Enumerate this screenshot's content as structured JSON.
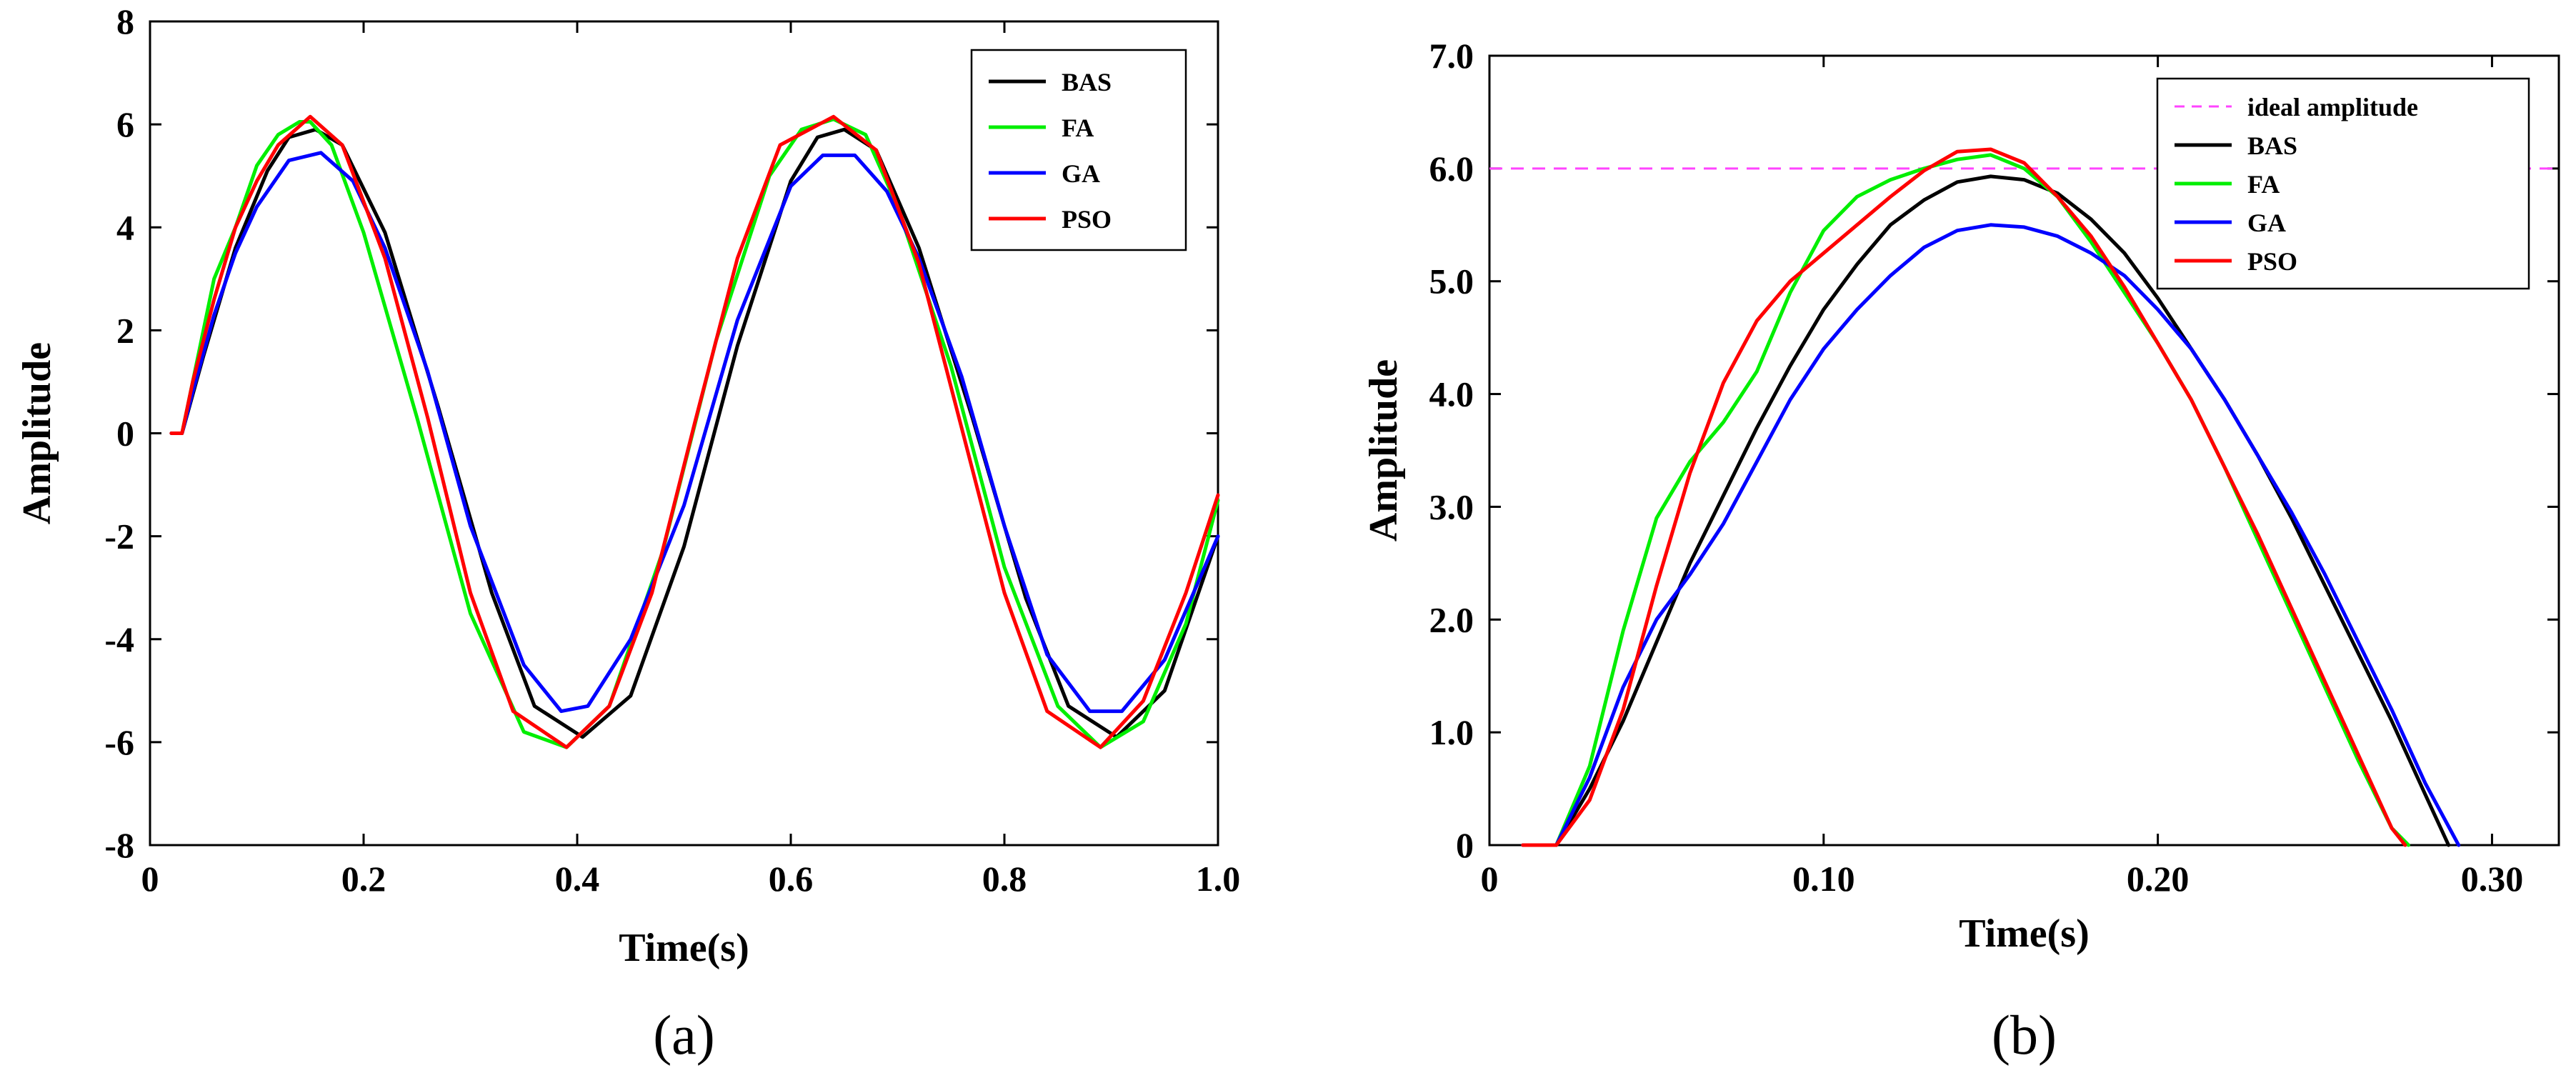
{
  "chart_data": [
    {
      "type": "line",
      "caption": "(a)",
      "xlabel": "Time(s)",
      "ylabel": "Amplitude",
      "xlim": [
        0,
        1.0
      ],
      "ylim": [
        -8,
        8
      ],
      "x_ticks": [
        0,
        0.2,
        0.4,
        0.6,
        0.8,
        1.0
      ],
      "x_tick_labels": [
        "0",
        "0.2",
        "0.4",
        "0.6",
        "0.8",
        "1.0"
      ],
      "y_ticks": [
        -8,
        -6,
        -4,
        -2,
        0,
        2,
        4,
        6,
        8
      ],
      "y_tick_labels": [
        "-8",
        "-6",
        "-4",
        "-2",
        "0",
        "2",
        "4",
        "6",
        "8"
      ],
      "legend_position": "top-right",
      "series": [
        {
          "name": "BAS",
          "color": "#000000",
          "x": [
            0.02,
            0.03,
            0.05,
            0.08,
            0.11,
            0.13,
            0.155,
            0.18,
            0.22,
            0.27,
            0.32,
            0.36,
            0.405,
            0.45,
            0.5,
            0.55,
            0.6,
            0.625,
            0.65,
            0.68,
            0.72,
            0.77,
            0.82,
            0.86,
            0.905,
            0.95,
            1.0
          ],
          "y": [
            0,
            0,
            1.5,
            3.6,
            5.1,
            5.75,
            5.9,
            5.6,
            3.9,
            0.5,
            -3.1,
            -5.3,
            -5.9,
            -5.1,
            -2.2,
            1.7,
            4.9,
            5.75,
            5.9,
            5.5,
            3.6,
            0.3,
            -3.2,
            -5.3,
            -5.9,
            -5.0,
            -2.0
          ]
        },
        {
          "name": "FA",
          "color": "#00ee00",
          "x": [
            0.02,
            0.03,
            0.04,
            0.06,
            0.08,
            0.1,
            0.12,
            0.14,
            0.15,
            0.17,
            0.2,
            0.25,
            0.3,
            0.35,
            0.39,
            0.43,
            0.48,
            0.53,
            0.58,
            0.61,
            0.64,
            0.67,
            0.7,
            0.75,
            0.8,
            0.85,
            0.89,
            0.93,
            0.97,
            1.0
          ],
          "y": [
            0,
            0,
            1.0,
            3.0,
            4.0,
            5.2,
            5.8,
            6.05,
            6.05,
            5.6,
            3.9,
            0.3,
            -3.5,
            -5.8,
            -6.1,
            -5.3,
            -2.3,
            1.8,
            5.0,
            5.9,
            6.1,
            5.8,
            4.4,
            1.3,
            -2.6,
            -5.3,
            -6.1,
            -5.6,
            -3.7,
            -1.3
          ]
        },
        {
          "name": "GA",
          "color": "#0000ff",
          "x": [
            0.02,
            0.03,
            0.04,
            0.06,
            0.08,
            0.1,
            0.13,
            0.16,
            0.19,
            0.22,
            0.26,
            0.3,
            0.35,
            0.385,
            0.41,
            0.45,
            0.5,
            0.55,
            0.6,
            0.63,
            0.66,
            0.69,
            0.72,
            0.76,
            0.8,
            0.84,
            0.88,
            0.91,
            0.95,
            1.0
          ],
          "y": [
            0,
            0,
            0.8,
            2.3,
            3.5,
            4.4,
            5.3,
            5.45,
            4.9,
            3.6,
            1.2,
            -1.8,
            -4.5,
            -5.4,
            -5.3,
            -4.0,
            -1.4,
            2.2,
            4.8,
            5.4,
            5.4,
            4.7,
            3.4,
            1.1,
            -1.8,
            -4.3,
            -5.4,
            -5.4,
            -4.4,
            -2.0
          ]
        },
        {
          "name": "PSO",
          "color": "#ff0000",
          "x": [
            0.02,
            0.03,
            0.04,
            0.06,
            0.08,
            0.1,
            0.12,
            0.15,
            0.18,
            0.22,
            0.26,
            0.3,
            0.34,
            0.39,
            0.43,
            0.47,
            0.51,
            0.55,
            0.59,
            0.64,
            0.68,
            0.72,
            0.76,
            0.8,
            0.84,
            0.89,
            0.93,
            0.97,
            1.0
          ],
          "y": [
            0,
            0,
            1.0,
            2.6,
            4.0,
            4.9,
            5.6,
            6.15,
            5.6,
            3.4,
            0.3,
            -3.1,
            -5.4,
            -6.1,
            -5.3,
            -3.1,
            0.2,
            3.4,
            5.6,
            6.15,
            5.5,
            3.3,
            0.1,
            -3.1,
            -5.4,
            -6.1,
            -5.2,
            -3.1,
            -1.2
          ]
        }
      ]
    },
    {
      "type": "line",
      "caption": "(b)",
      "xlabel": "Time(s)",
      "ylabel": "Amplitude",
      "xlim": [
        0,
        0.32
      ],
      "ylim": [
        0,
        7.0
      ],
      "x_ticks": [
        0,
        0.1,
        0.2,
        0.3
      ],
      "x_tick_labels": [
        "0",
        "0.10",
        "0.20",
        "0.30"
      ],
      "y_ticks": [
        0,
        1,
        2,
        3,
        4,
        5,
        6,
        7
      ],
      "y_tick_labels": [
        "0",
        "1.0",
        "2.0",
        "3.0",
        "4.0",
        "5.0",
        "6.0",
        "7.0"
      ],
      "legend_position": "top-right",
      "reference_line": {
        "name": "ideal amplitude",
        "value": 6.0,
        "color": "#ff44ff"
      },
      "series": [
        {
          "name": "BAS",
          "color": "#000000",
          "x": [
            0.01,
            0.02,
            0.03,
            0.04,
            0.05,
            0.06,
            0.07,
            0.08,
            0.09,
            0.1,
            0.11,
            0.12,
            0.13,
            0.14,
            0.15,
            0.16,
            0.17,
            0.18,
            0.19,
            0.2,
            0.21,
            0.22,
            0.23,
            0.24,
            0.25,
            0.26,
            0.27,
            0.28,
            0.287
          ],
          "y": [
            0,
            0,
            0.5,
            1.1,
            1.8,
            2.5,
            3.1,
            3.7,
            4.25,
            4.75,
            5.15,
            5.5,
            5.72,
            5.88,
            5.93,
            5.9,
            5.78,
            5.55,
            5.25,
            4.85,
            4.4,
            3.95,
            3.45,
            2.9,
            2.3,
            1.7,
            1.1,
            0.45,
            0
          ]
        },
        {
          "name": "FA",
          "color": "#00ee00",
          "x": [
            0.01,
            0.02,
            0.03,
            0.04,
            0.05,
            0.06,
            0.07,
            0.08,
            0.09,
            0.1,
            0.11,
            0.12,
            0.13,
            0.14,
            0.15,
            0.16,
            0.17,
            0.18,
            0.19,
            0.2,
            0.21,
            0.22,
            0.23,
            0.24,
            0.25,
            0.26,
            0.27,
            0.275
          ],
          "y": [
            0,
            0,
            0.7,
            1.9,
            2.9,
            3.4,
            3.75,
            4.2,
            4.9,
            5.45,
            5.75,
            5.9,
            6.0,
            6.08,
            6.12,
            6.0,
            5.75,
            5.35,
            4.9,
            4.45,
            3.95,
            3.35,
            2.7,
            2.05,
            1.4,
            0.75,
            0.15,
            0
          ]
        },
        {
          "name": "GA",
          "color": "#0000ff",
          "x": [
            0.01,
            0.02,
            0.03,
            0.04,
            0.05,
            0.06,
            0.07,
            0.08,
            0.09,
            0.1,
            0.11,
            0.12,
            0.13,
            0.14,
            0.15,
            0.16,
            0.17,
            0.18,
            0.19,
            0.2,
            0.21,
            0.22,
            0.23,
            0.24,
            0.25,
            0.26,
            0.27,
            0.28,
            0.29
          ],
          "y": [
            0,
            0,
            0.6,
            1.4,
            2.0,
            2.4,
            2.85,
            3.4,
            3.95,
            4.4,
            4.75,
            5.05,
            5.3,
            5.45,
            5.5,
            5.48,
            5.4,
            5.25,
            5.05,
            4.75,
            4.4,
            3.95,
            3.45,
            2.95,
            2.4,
            1.8,
            1.2,
            0.55,
            0
          ]
        },
        {
          "name": "PSO",
          "color": "#ff0000",
          "x": [
            0.01,
            0.02,
            0.03,
            0.04,
            0.05,
            0.06,
            0.07,
            0.08,
            0.09,
            0.1,
            0.11,
            0.12,
            0.13,
            0.14,
            0.15,
            0.16,
            0.17,
            0.18,
            0.19,
            0.2,
            0.21,
            0.22,
            0.23,
            0.24,
            0.25,
            0.26,
            0.27,
            0.274
          ],
          "y": [
            0,
            0,
            0.4,
            1.2,
            2.3,
            3.3,
            4.1,
            4.65,
            5.0,
            5.25,
            5.5,
            5.75,
            5.98,
            6.15,
            6.17,
            6.05,
            5.75,
            5.4,
            4.95,
            4.45,
            3.95,
            3.35,
            2.75,
            2.1,
            1.45,
            0.8,
            0.15,
            0
          ]
        }
      ]
    }
  ]
}
